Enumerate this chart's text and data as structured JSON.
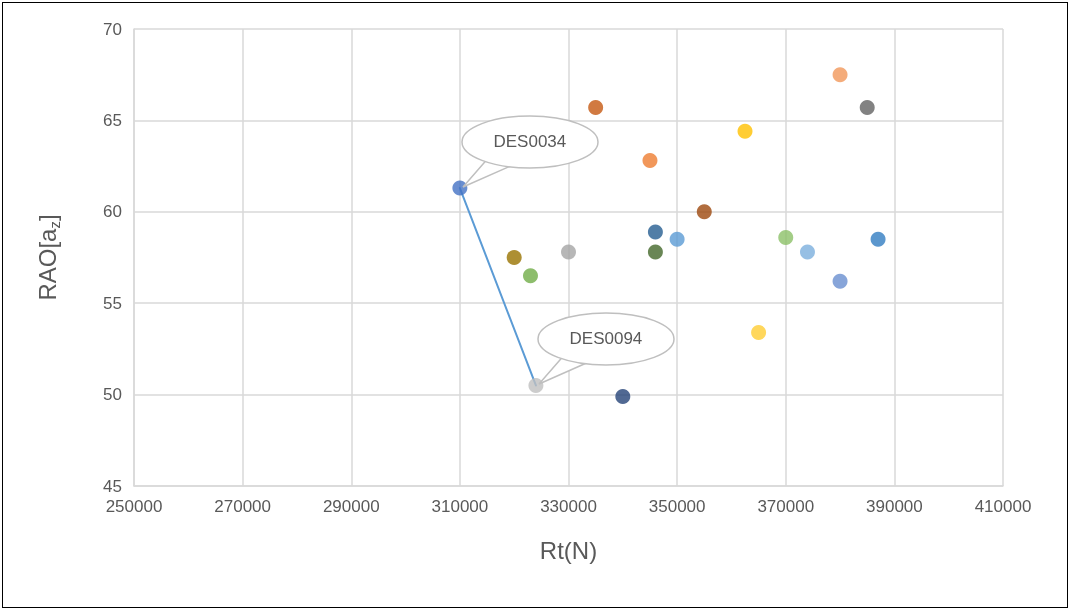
{
  "chart_data": {
    "type": "scatter",
    "xlabel": "Rt(N)",
    "ylabel": "RAO[a$_{z}$]",
    "xlim": [
      250000,
      410000
    ],
    "xticks": [
      250000,
      270000,
      290000,
      310000,
      330000,
      350000,
      370000,
      390000,
      410000
    ],
    "ylim": [
      45,
      70
    ],
    "yticks": [
      45,
      50,
      55,
      60,
      65,
      70
    ],
    "grid": true,
    "marker": "circle",
    "series": [
      {
        "x": [
          310000,
          320000,
          323000,
          330000,
          324000,
          335000,
          345000,
          362500,
          380000,
          385000,
          355000,
          346000,
          346000,
          350000,
          370000,
          374000,
          380000,
          387000,
          365000,
          340000
        ],
        "values": [
          61.3,
          57.5,
          56.5,
          57.8,
          50.5,
          65.7,
          62.8,
          64.4,
          67.5,
          65.7,
          60.0,
          58.9,
          57.8,
          58.5,
          58.6,
          57.8,
          56.2,
          58.5,
          53.4,
          49.9
        ],
        "colors": [
          "#4472c4",
          "#997300",
          "#70ad47",
          "#a5a5a5",
          "#bfbfbf",
          "#c65911",
          "#ed7d31",
          "#ffc000",
          "#f1975a",
          "#636363",
          "#9e480e",
          "#255e91",
          "#43682b",
          "#5b9bd5",
          "#8cc168",
          "#7cafdd",
          "#698ed0",
          "#327dc2",
          "#ffcd33",
          "#264478"
        ]
      },
      {
        "type": "line",
        "x": [
          310000,
          324000
        ],
        "values": [
          61.3,
          50.5
        ],
        "color": "#5b9bd5",
        "marker": "none",
        "line_style": "solid"
      }
    ],
    "annotations": [
      {
        "text": "DES0034",
        "x": 310000,
        "y": 61.3
      },
      {
        "text": "DES0094",
        "x": 324000,
        "y": 50.5
      }
    ]
  }
}
